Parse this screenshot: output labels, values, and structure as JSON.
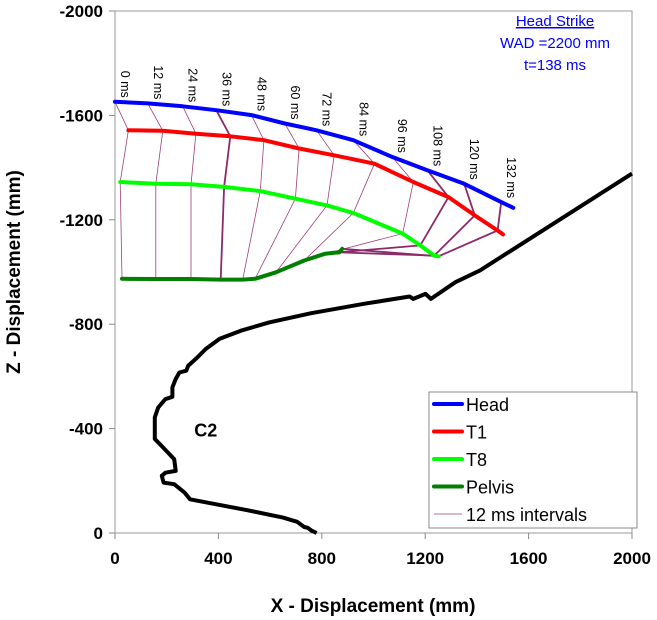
{
  "chart_data": {
    "type": "line",
    "xlabel": "X - Displacement (mm)",
    "ylabel": "Z - Displacement (mm)",
    "xlim": [
      0,
      2000
    ],
    "ylim": [
      0,
      -2000
    ],
    "xticks": [
      "0",
      "400",
      "800",
      "1200",
      "1600",
      "2000"
    ],
    "yticks": [
      "0",
      "-400",
      "-800",
      "-1200",
      "-1600",
      "-2000"
    ],
    "grid": false,
    "legend_placement": "bottom-right",
    "annotation": {
      "title": "Head Strike",
      "line1": "WAD =2200 mm",
      "line2": "t=138 ms"
    },
    "vehicle_label": "C2",
    "time_labels": [
      "0 ms",
      "12 ms",
      "24 ms",
      "36 ms",
      "48 ms",
      "60 ms",
      "72 ms",
      "84 ms",
      "96 ms",
      "108 ms",
      "120 ms",
      "132 ms"
    ],
    "series": [
      {
        "name": "Head",
        "color": "#0000ff",
        "points": [
          [
            0,
            -1652
          ],
          [
            127,
            -1646
          ],
          [
            262,
            -1635
          ],
          [
            392,
            -1620
          ],
          [
            528,
            -1601
          ],
          [
            657,
            -1569
          ],
          [
            780,
            -1543
          ],
          [
            922,
            -1505
          ],
          [
            1072,
            -1441
          ],
          [
            1208,
            -1390
          ],
          [
            1351,
            -1338
          ],
          [
            1494,
            -1268
          ],
          [
            1541,
            -1246
          ]
        ]
      },
      {
        "name": "T1",
        "color": "#ff0000",
        "points": [
          [
            52,
            -1543
          ],
          [
            185,
            -1541
          ],
          [
            313,
            -1530
          ],
          [
            446,
            -1520
          ],
          [
            576,
            -1505
          ],
          [
            712,
            -1473
          ],
          [
            848,
            -1447
          ],
          [
            1004,
            -1415
          ],
          [
            1154,
            -1345
          ],
          [
            1290,
            -1287
          ],
          [
            1392,
            -1217
          ],
          [
            1480,
            -1159
          ],
          [
            1501,
            -1144
          ]
        ]
      },
      {
        "name": "T8",
        "color": "#00ff00",
        "points": [
          [
            20,
            -1345
          ],
          [
            158,
            -1338
          ],
          [
            294,
            -1336
          ],
          [
            422,
            -1326
          ],
          [
            562,
            -1310
          ],
          [
            698,
            -1281
          ],
          [
            820,
            -1255
          ],
          [
            922,
            -1226
          ],
          [
            1113,
            -1147
          ],
          [
            1181,
            -1102
          ],
          [
            1235,
            -1063
          ],
          [
            1252,
            -1060
          ],
          [
            1252,
            -1060
          ]
        ]
      },
      {
        "name": "Pelvis",
        "color": "#008000",
        "points": [
          [
            27,
            -974
          ],
          [
            158,
            -973
          ],
          [
            294,
            -973
          ],
          [
            409,
            -971
          ],
          [
            494,
            -971
          ],
          [
            542,
            -974
          ],
          [
            623,
            -999
          ],
          [
            732,
            -1044
          ],
          [
            813,
            -1070
          ],
          [
            848,
            -1074
          ],
          [
            868,
            -1075
          ],
          [
            879,
            -1089
          ],
          [
            879,
            -1089
          ]
        ]
      }
    ],
    "intervals": {
      "name": "12 ms intervals",
      "color": "#a0407a"
    },
    "vehicle_profile": {
      "color": "#000000",
      "points": [
        [
          780,
          0
        ],
        [
          759,
          -10
        ],
        [
          746,
          -20
        ],
        [
          732,
          -23
        ],
        [
          705,
          -43
        ],
        [
          650,
          -59
        ],
        [
          514,
          -87
        ],
        [
          392,
          -110
        ],
        [
          290,
          -129
        ],
        [
          269,
          -155
        ],
        [
          229,
          -187
        ],
        [
          188,
          -193
        ],
        [
          181,
          -219
        ],
        [
          195,
          -231
        ],
        [
          235,
          -238
        ],
        [
          229,
          -283
        ],
        [
          174,
          -340
        ],
        [
          154,
          -360
        ],
        [
          154,
          -443
        ],
        [
          167,
          -481
        ],
        [
          195,
          -513
        ],
        [
          222,
          -522
        ],
        [
          222,
          -558
        ],
        [
          235,
          -590
        ],
        [
          249,
          -615
        ],
        [
          276,
          -622
        ],
        [
          283,
          -641
        ],
        [
          317,
          -671
        ],
        [
          351,
          -705
        ],
        [
          405,
          -744
        ],
        [
          487,
          -775
        ],
        [
          596,
          -807
        ],
        [
          759,
          -842
        ],
        [
          963,
          -878
        ],
        [
          1140,
          -906
        ],
        [
          1154,
          -897
        ],
        [
          1201,
          -916
        ],
        [
          1222,
          -897
        ],
        [
          1317,
          -961
        ],
        [
          1412,
          -1006
        ],
        [
          2000,
          -1377
        ]
      ]
    }
  }
}
